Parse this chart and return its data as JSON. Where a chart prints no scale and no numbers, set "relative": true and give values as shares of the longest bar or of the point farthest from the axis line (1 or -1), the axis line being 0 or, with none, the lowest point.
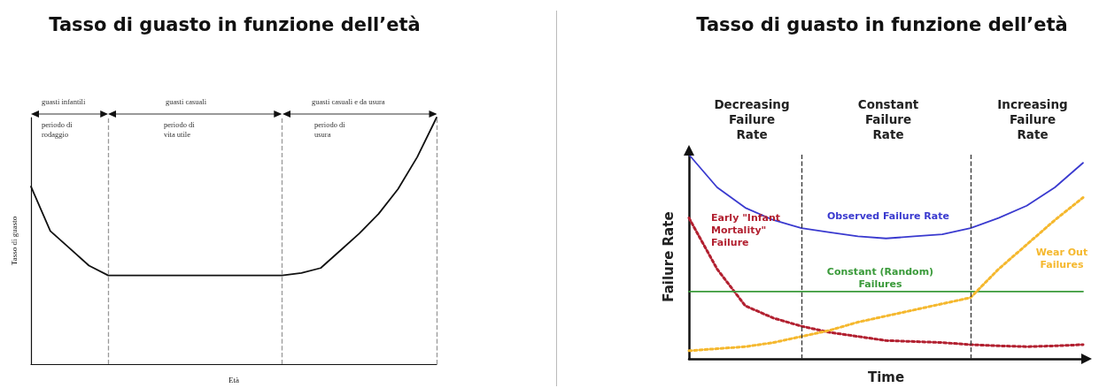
{
  "chart_data": [
    {
      "type": "line",
      "title": "Tasso di guasto in funzione dell’età",
      "xlabel": "Età",
      "ylabel": "Tasso di guasto",
      "relative": true,
      "categories": [
        null,
        null,
        null,
        null,
        null,
        null,
        null,
        null,
        null,
        null,
        null,
        null,
        null,
        null,
        null,
        null,
        null,
        null,
        null,
        null,
        null,
        null
      ],
      "series": [
        {
          "color": "#111111",
          "values": [
            0.72,
            0.54,
            0.47,
            0.4,
            0.36,
            0.36,
            0.36,
            0.36,
            0.36,
            0.36,
            0.36,
            0.36,
            0.36,
            0.36,
            0.37,
            0.39,
            0.46,
            0.53,
            0.61,
            0.71,
            0.84,
            1.0
          ]
        }
      ],
      "annotations": [
        "guasti infantili",
        "periodo di rodaggio",
        "guasti casuali",
        "periodo di vita utile",
        "guasti casuali e da usura",
        "periodo di usura"
      ]
    },
    {
      "type": "line",
      "title": "Tasso di guasto in funzione dell’età",
      "xlabel": "Time",
      "ylabel": "Failure Rate",
      "relative": true,
      "categories": [
        null,
        null,
        null,
        null,
        null,
        null,
        null,
        null,
        null,
        null,
        null,
        null,
        null,
        null,
        null
      ],
      "series": [
        {
          "name": "Observed Failure Rate",
          "color": "#3a3acf",
          "values": [
            1.0,
            0.84,
            0.74,
            0.68,
            0.64,
            0.62,
            0.6,
            0.59,
            0.6,
            0.61,
            0.64,
            0.69,
            0.75,
            0.84,
            0.96
          ]
        },
        {
          "name": "Early \"Infant Mortality\" Failure",
          "color": "#b22030",
          "line_style": "dotted",
          "values": [
            0.69,
            0.44,
            0.26,
            0.2,
            0.16,
            0.13,
            0.11,
            0.09,
            0.085,
            0.08,
            0.07,
            0.064,
            0.06,
            0.064,
            0.07
          ]
        },
        {
          "name": "Constant (Random) Failures",
          "color": "#3a9a3a",
          "values": [
            0.33,
            0.33,
            0.33,
            0.33,
            0.33,
            0.33,
            0.33,
            0.33,
            0.33,
            0.33,
            0.33,
            0.33,
            0.33,
            0.33,
            0.33
          ]
        },
        {
          "name": "Wear Out Failures",
          "color": "#f5b82e",
          "line_style": "dotted",
          "values": [
            0.04,
            0.05,
            0.06,
            0.08,
            0.11,
            0.14,
            0.18,
            0.21,
            0.24,
            0.27,
            0.3,
            0.44,
            0.56,
            0.68,
            0.79
          ]
        }
      ],
      "annotations": [
        "Decreasing Failure Rate",
        "Constant Failure Rate",
        "Increasing Failure Rate"
      ]
    }
  ]
}
